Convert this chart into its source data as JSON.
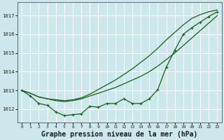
{
  "title": "Graphe pression niveau de la mer (hPa)",
  "background_color": "#cce8ec",
  "grid_color": "#ffffff",
  "line_color": "#1a5c1a",
  "xlim": [
    -0.5,
    23.5
  ],
  "ylim": [
    1011.3,
    1017.7
  ],
  "yticks": [
    1012,
    1013,
    1014,
    1015,
    1016,
    1017
  ],
  "xticks": [
    0,
    1,
    2,
    3,
    4,
    5,
    6,
    7,
    8,
    9,
    10,
    11,
    12,
    13,
    14,
    15,
    16,
    17,
    18,
    19,
    20,
    21,
    22,
    23
  ],
  "series_marker": [
    1013.0,
    1012.7,
    1012.3,
    1012.2,
    1011.85,
    1011.65,
    1011.7,
    1011.75,
    1012.15,
    1012.1,
    1012.3,
    1012.3,
    1012.55,
    1012.3,
    1012.3,
    1012.55,
    1013.05,
    1014.25,
    1015.15,
    1016.0,
    1016.35,
    1016.65,
    1016.95,
    1017.2
  ],
  "series_mid": [
    1013.0,
    1012.85,
    1012.65,
    1012.55,
    1012.45,
    1012.4,
    1012.45,
    1012.55,
    1012.7,
    1012.85,
    1013.0,
    1013.15,
    1013.35,
    1013.55,
    1013.75,
    1014.0,
    1014.3,
    1014.65,
    1015.0,
    1015.4,
    1015.8,
    1016.2,
    1016.6,
    1017.0
  ],
  "series_top": [
    1013.0,
    1012.85,
    1012.65,
    1012.55,
    1012.5,
    1012.45,
    1012.5,
    1012.6,
    1012.8,
    1013.05,
    1013.3,
    1013.55,
    1013.85,
    1014.15,
    1014.5,
    1014.85,
    1015.25,
    1015.7,
    1016.1,
    1016.5,
    1016.85,
    1017.05,
    1017.2,
    1017.3
  ],
  "ylabel_fontsize": 5.5,
  "xlabel_fontsize": 5.5,
  "title_fontsize": 7.0
}
